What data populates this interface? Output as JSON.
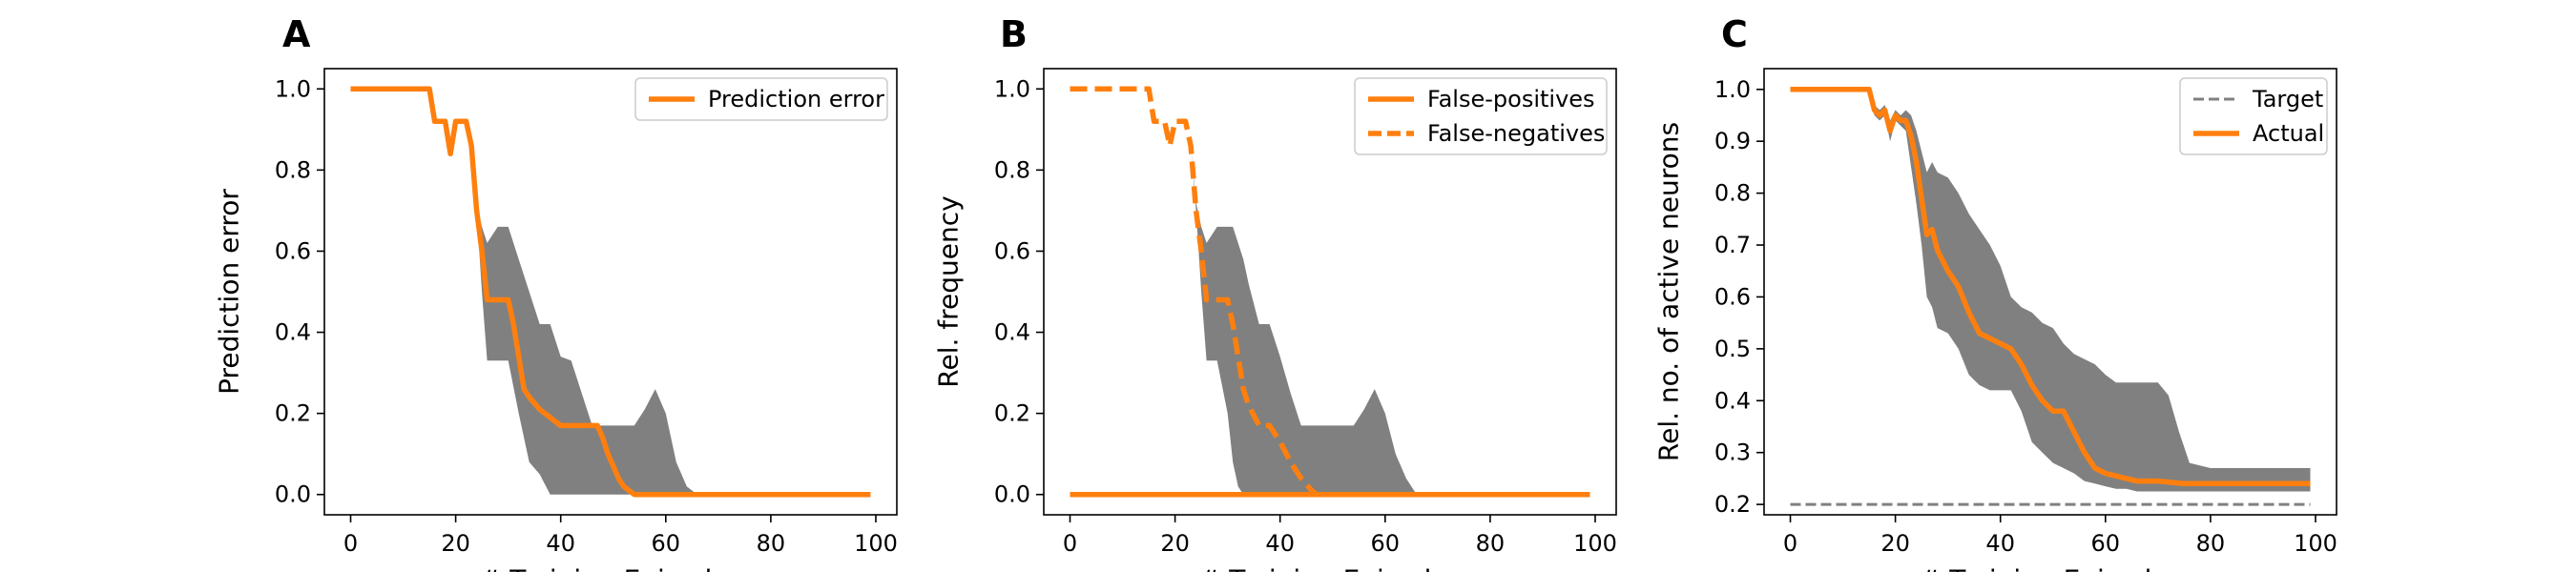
{
  "colors": {
    "actual": "#ff7f0e",
    "band": "#808080",
    "target": "#808080",
    "axes": "#000000"
  },
  "chart_data": [
    {
      "panel": "A",
      "type": "line",
      "xlabel": "# Training Episodes",
      "ylabel": "Prediction error",
      "xlim": [
        -5,
        104
      ],
      "ylim": [
        -0.05,
        1.05
      ],
      "xticks": [
        0,
        20,
        40,
        60,
        80,
        100
      ],
      "yticks": [
        "0.0",
        "0.2",
        "0.4",
        "0.6",
        "0.8",
        "1.0"
      ],
      "legend_location": "upper right",
      "series": [
        {
          "name": "Prediction error",
          "style": "solid",
          "x": [
            0,
            15,
            16,
            18,
            19,
            20,
            21,
            22,
            23,
            24,
            25,
            26,
            27,
            30,
            31,
            32,
            33,
            34,
            36,
            38,
            40,
            42,
            44,
            47,
            48,
            49,
            50,
            51,
            52,
            53,
            54,
            56,
            60,
            70,
            80,
            90,
            99
          ],
          "y": [
            1.0,
            1.0,
            0.92,
            0.92,
            0.84,
            0.92,
            0.92,
            0.92,
            0.86,
            0.7,
            0.6,
            0.48,
            0.48,
            0.48,
            0.42,
            0.34,
            0.26,
            0.24,
            0.21,
            0.19,
            0.17,
            0.17,
            0.17,
            0.17,
            0.14,
            0.1,
            0.07,
            0.04,
            0.02,
            0.01,
            0.0,
            0.0,
            0.0,
            0.0,
            0.0,
            0.0,
            0.0
          ]
        }
      ],
      "band": {
        "x": [
          0,
          15,
          16,
          18,
          19,
          20,
          21,
          22,
          23,
          24,
          25,
          26,
          28,
          30,
          32,
          34,
          36,
          38,
          40,
          42,
          44,
          46,
          48,
          50,
          52,
          54,
          56,
          58,
          60,
          62,
          64,
          66,
          68,
          70,
          99
        ],
        "lower": [
          1.0,
          1.0,
          0.92,
          0.92,
          0.84,
          0.92,
          0.92,
          0.92,
          0.86,
          0.7,
          0.5,
          0.33,
          0.33,
          0.33,
          0.2,
          0.08,
          0.05,
          0.0,
          0.0,
          0.0,
          0.0,
          0.0,
          0.0,
          0.0,
          0.0,
          0.0,
          0.0,
          0.0,
          0.0,
          0.0,
          0.0,
          0.0,
          0.0,
          0.0,
          0.0
        ],
        "upper": [
          1.0,
          1.0,
          0.92,
          0.92,
          0.84,
          0.92,
          0.92,
          0.92,
          0.86,
          0.72,
          0.66,
          0.62,
          0.66,
          0.66,
          0.58,
          0.5,
          0.42,
          0.42,
          0.34,
          0.33,
          0.25,
          0.17,
          0.17,
          0.17,
          0.17,
          0.17,
          0.21,
          0.26,
          0.2,
          0.08,
          0.02,
          0.0,
          0.0,
          0.0,
          0.0
        ]
      }
    },
    {
      "panel": "B",
      "type": "line",
      "xlabel": "# Training Episodes",
      "ylabel": "Rel. frequency",
      "xlim": [
        -5,
        104
      ],
      "ylim": [
        -0.05,
        1.05
      ],
      "xticks": [
        0,
        20,
        40,
        60,
        80,
        100
      ],
      "yticks": [
        "0.0",
        "0.2",
        "0.4",
        "0.6",
        "0.8",
        "1.0"
      ],
      "legend_location": "upper right",
      "series": [
        {
          "name": "False-positives",
          "style": "solid",
          "x": [
            0,
            99
          ],
          "y": [
            0.0,
            0.0
          ]
        },
        {
          "name": "False-negatives",
          "style": "dashed",
          "x": [
            0,
            15,
            16,
            18,
            19,
            20,
            21,
            22,
            23,
            24,
            25,
            26,
            27,
            30,
            31,
            32,
            33,
            34,
            36,
            38,
            40,
            42,
            44,
            46,
            47,
            48,
            99
          ],
          "y": [
            1.0,
            1.0,
            0.92,
            0.92,
            0.86,
            0.92,
            0.92,
            0.92,
            0.86,
            0.7,
            0.6,
            0.48,
            0.48,
            0.48,
            0.42,
            0.34,
            0.26,
            0.22,
            0.17,
            0.17,
            0.13,
            0.08,
            0.04,
            0.01,
            0.0,
            0.0,
            0.0
          ]
        }
      ],
      "band": {
        "x": [
          0,
          15,
          16,
          18,
          19,
          20,
          21,
          22,
          23,
          24,
          25,
          26,
          28,
          30,
          31,
          32,
          33,
          34,
          36,
          38,
          40,
          42,
          44,
          46,
          48,
          50,
          52,
          54,
          56,
          58,
          60,
          62,
          64,
          66,
          68,
          70,
          99
        ],
        "lower": [
          1.0,
          1.0,
          0.92,
          0.92,
          0.86,
          0.92,
          0.92,
          0.92,
          0.86,
          0.7,
          0.5,
          0.33,
          0.33,
          0.2,
          0.08,
          0.02,
          0.0,
          0.0,
          0.0,
          0.0,
          0.0,
          0.0,
          0.0,
          0.0,
          0.0,
          0.0,
          0.0,
          0.0,
          0.0,
          0.0,
          0.0,
          0.0,
          0.0,
          0.0,
          0.0,
          0.0,
          0.0
        ],
        "upper": [
          1.0,
          1.0,
          0.92,
          0.92,
          0.86,
          0.92,
          0.92,
          0.92,
          0.86,
          0.72,
          0.66,
          0.62,
          0.66,
          0.66,
          0.66,
          0.62,
          0.58,
          0.52,
          0.42,
          0.42,
          0.34,
          0.25,
          0.17,
          0.17,
          0.17,
          0.17,
          0.17,
          0.17,
          0.21,
          0.26,
          0.2,
          0.1,
          0.04,
          0.0,
          0.0,
          0.0,
          0.0
        ]
      }
    },
    {
      "panel": "C",
      "type": "line",
      "xlabel": "# Training Episodes",
      "ylabel": "Rel. no. of active neurons",
      "xlim": [
        -5,
        104
      ],
      "ylim": [
        0.18,
        1.04
      ],
      "xticks": [
        0,
        20,
        40,
        60,
        80,
        100
      ],
      "yticks": [
        "0.2",
        "0.3",
        "0.4",
        "0.5",
        "0.6",
        "0.7",
        "0.8",
        "0.9",
        "1.0"
      ],
      "legend_location": "upper right",
      "series": [
        {
          "name": "Target",
          "style": "dashed",
          "x": [
            0,
            99
          ],
          "y": [
            0.2,
            0.2
          ]
        },
        {
          "name": "Actual",
          "style": "solid",
          "x": [
            0,
            15,
            16,
            17,
            18,
            19,
            20,
            21,
            22,
            23,
            24,
            25,
            26,
            27,
            28,
            30,
            32,
            34,
            36,
            38,
            40,
            42,
            44,
            46,
            48,
            50,
            52,
            54,
            56,
            58,
            60,
            62,
            64,
            66,
            70,
            75,
            80,
            90,
            99
          ],
          "y": [
            1.0,
            1.0,
            0.96,
            0.95,
            0.96,
            0.92,
            0.95,
            0.94,
            0.94,
            0.91,
            0.86,
            0.79,
            0.72,
            0.73,
            0.69,
            0.65,
            0.62,
            0.57,
            0.53,
            0.52,
            0.51,
            0.5,
            0.47,
            0.43,
            0.4,
            0.38,
            0.38,
            0.34,
            0.3,
            0.27,
            0.26,
            0.255,
            0.25,
            0.245,
            0.245,
            0.24,
            0.24,
            0.24,
            0.24
          ]
        }
      ],
      "band": {
        "x": [
          0,
          15,
          16,
          17,
          18,
          19,
          20,
          21,
          22,
          23,
          24,
          25,
          26,
          27,
          28,
          30,
          32,
          34,
          36,
          38,
          40,
          42,
          44,
          46,
          48,
          50,
          52,
          54,
          56,
          58,
          60,
          62,
          64,
          66,
          68,
          70,
          72,
          74,
          76,
          80,
          99
        ],
        "lower": [
          1.0,
          1.0,
          0.95,
          0.94,
          0.95,
          0.9,
          0.94,
          0.93,
          0.92,
          0.85,
          0.78,
          0.7,
          0.6,
          0.58,
          0.54,
          0.53,
          0.5,
          0.45,
          0.43,
          0.42,
          0.42,
          0.42,
          0.38,
          0.32,
          0.3,
          0.28,
          0.27,
          0.26,
          0.245,
          0.24,
          0.235,
          0.23,
          0.23,
          0.225,
          0.225,
          0.225,
          0.225,
          0.225,
          0.225,
          0.225,
          0.225
        ],
        "upper": [
          1.0,
          1.0,
          0.97,
          0.96,
          0.97,
          0.94,
          0.96,
          0.95,
          0.96,
          0.95,
          0.92,
          0.88,
          0.84,
          0.86,
          0.84,
          0.83,
          0.8,
          0.76,
          0.73,
          0.7,
          0.66,
          0.6,
          0.58,
          0.57,
          0.55,
          0.54,
          0.51,
          0.49,
          0.48,
          0.47,
          0.45,
          0.435,
          0.435,
          0.435,
          0.435,
          0.435,
          0.41,
          0.34,
          0.28,
          0.27,
          0.27
        ]
      }
    }
  ]
}
